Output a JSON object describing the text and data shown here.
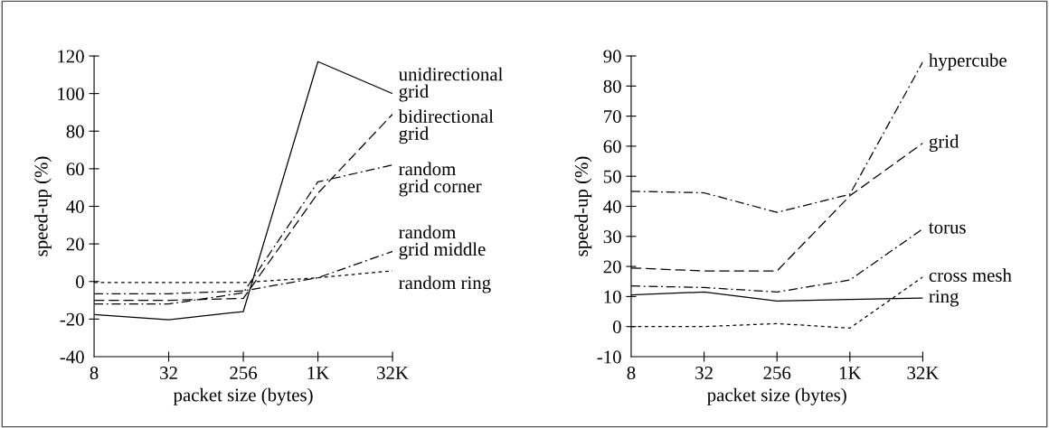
{
  "chart_data": [
    {
      "type": "line",
      "xlabel": "packet size (bytes)",
      "ylabel": "speed-up (%)",
      "categories": [
        "8",
        "32",
        "256",
        "1K",
        "32K"
      ],
      "ylim": [
        -40,
        120
      ],
      "yticks": [
        -40,
        -20,
        0,
        20,
        40,
        60,
        80,
        100,
        120
      ],
      "grid": false,
      "legend": false,
      "marker": "none",
      "series": [
        {
          "name": "unidirectional grid",
          "color": "#000000",
          "line_style": "solid",
          "values": [
            -17.6,
            -20.4,
            -16,
            117,
            100
          ]
        },
        {
          "name": "bidirectional grid",
          "color": "#000000",
          "line_style": "dashed",
          "values": [
            -10,
            -10,
            -9,
            47,
            89
          ]
        },
        {
          "name": "random grid corner",
          "color": "#000000",
          "line_style": "dashdot",
          "values": [
            -12,
            -12,
            -6,
            53,
            62
          ]
        },
        {
          "name": "random grid middle",
          "color": "#000000",
          "line_style": "dashdot",
          "values": [
            -6.5,
            -6.5,
            -5,
            2,
            16
          ]
        },
        {
          "name": "random ring",
          "color": "#000000",
          "line_style": "dotted",
          "values": [
            -0.5,
            -0.5,
            -0.5,
            2,
            5.7
          ]
        }
      ]
    },
    {
      "type": "line",
      "xlabel": "packet size (bytes)",
      "ylabel": "speed-up (%)",
      "categories": [
        "8",
        "32",
        "256",
        "1K",
        "32K"
      ],
      "ylim": [
        -10,
        90
      ],
      "yticks": [
        -10,
        0,
        10,
        20,
        30,
        40,
        50,
        60,
        70,
        80,
        90
      ],
      "grid": false,
      "legend": false,
      "marker": "none",
      "series": [
        {
          "name": "hypercube",
          "color": "#000000",
          "line_style": "dashdot",
          "values": [
            45,
            44.5,
            38,
            44,
            88
          ]
        },
        {
          "name": "grid",
          "color": "#000000",
          "line_style": "dashed",
          "values": [
            19.5,
            18.5,
            18.5,
            43.5,
            61
          ]
        },
        {
          "name": "torus",
          "color": "#000000",
          "line_style": "dashdot",
          "values": [
            13.5,
            13,
            11.5,
            15.5,
            32.5
          ]
        },
        {
          "name": "cross mesh",
          "color": "#000000",
          "line_style": "dotted",
          "values": [
            0,
            0,
            1,
            -0.5,
            16.5
          ]
        },
        {
          "name": "ring",
          "color": "#000000",
          "line_style": "solid",
          "values": [
            10.5,
            11.5,
            8.5,
            9,
            9.5
          ]
        }
      ]
    }
  ]
}
